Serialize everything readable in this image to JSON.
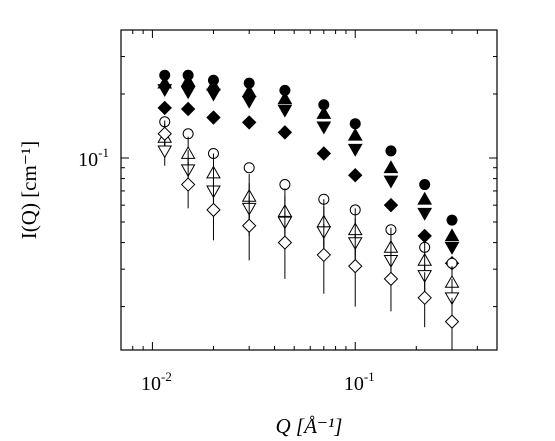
{
  "chart_data": {
    "type": "scatter",
    "title": "",
    "xlabel": "Q [Å⁻¹]",
    "ylabel": "I(Q) [cm⁻¹]",
    "xscale": "log",
    "yscale": "log",
    "xlim": [
      0.007,
      0.5
    ],
    "ylim": [
      0.0125,
      0.4
    ],
    "grid": false,
    "legend": "none",
    "x_ticks": [
      {
        "value": 0.01,
        "base": "10",
        "exp": "-2"
      },
      {
        "value": 0.1,
        "base": "10",
        "exp": "-1"
      }
    ],
    "y_ticks": [
      {
        "value": 0.1,
        "base": "10",
        "exp": "-1"
      }
    ],
    "series": [
      {
        "marker": "circle",
        "filled": true,
        "x": [
          0.0115,
          0.015,
          0.02,
          0.03,
          0.045,
          0.07,
          0.1,
          0.15,
          0.22,
          0.3
        ],
        "y": [
          0.245,
          0.245,
          0.232,
          0.225,
          0.208,
          0.178,
          0.145,
          0.108,
          0.075,
          0.051
        ]
      },
      {
        "marker": "triangle-up",
        "filled": true,
        "x": [
          0.0115,
          0.015,
          0.02,
          0.03,
          0.045,
          0.07,
          0.1,
          0.15,
          0.22,
          0.3
        ],
        "y": [
          0.225,
          0.23,
          0.22,
          0.205,
          0.19,
          0.162,
          0.128,
          0.09,
          0.064,
          0.043
        ]
      },
      {
        "marker": "triangle-down",
        "filled": true,
        "x": [
          0.0115,
          0.015,
          0.02,
          0.03,
          0.045,
          0.07,
          0.1,
          0.15,
          0.22,
          0.3
        ],
        "y": [
          0.21,
          0.205,
          0.2,
          0.185,
          0.168,
          0.14,
          0.11,
          0.078,
          0.055,
          0.038
        ]
      },
      {
        "marker": "diamond",
        "filled": true,
        "x": [
          0.0115,
          0.015,
          0.02,
          0.03,
          0.045,
          0.07,
          0.1,
          0.15,
          0.22,
          0.3
        ],
        "y": [
          0.172,
          0.17,
          0.155,
          0.147,
          0.132,
          0.105,
          0.083,
          0.06,
          0.043,
          0.032
        ]
      },
      {
        "marker": "circle",
        "filled": false,
        "x": [
          0.0115,
          0.015,
          0.02,
          0.03,
          0.045,
          0.07,
          0.1,
          0.15,
          0.22,
          0.3
        ],
        "y": [
          0.148,
          0.13,
          0.105,
          0.09,
          0.075,
          0.064,
          0.057,
          0.046,
          0.038,
          0.032
        ]
      },
      {
        "marker": "triangle-up",
        "filled": false,
        "errorbars": true,
        "x": [
          0.0115,
          0.015,
          0.02,
          0.03,
          0.045,
          0.07,
          0.1,
          0.15,
          0.22,
          0.3
        ],
        "y": [
          0.125,
          0.105,
          0.085,
          0.066,
          0.056,
          0.05,
          0.046,
          0.038,
          0.033,
          0.026
        ],
        "err_low": [
          0.016,
          0.017,
          0.016,
          0.014,
          0.013,
          0.012,
          0.011,
          0.008,
          0.006,
          0.004
        ],
        "err_high": [
          0.02,
          0.021,
          0.02,
          0.018,
          0.016,
          0.014,
          0.012,
          0.009,
          0.007,
          0.005
        ]
      },
      {
        "marker": "triangle-down",
        "filled": false,
        "errorbars": true,
        "x": [
          0.0115,
          0.015,
          0.02,
          0.03,
          0.045,
          0.07,
          0.1,
          0.15,
          0.22,
          0.3
        ],
        "y": [
          0.108,
          0.088,
          0.07,
          0.058,
          0.05,
          0.045,
          0.04,
          0.033,
          0.028,
          0.022
        ],
        "err_low": [
          0.016,
          0.017,
          0.016,
          0.015,
          0.013,
          0.012,
          0.011,
          0.008,
          0.006,
          0.004
        ],
        "err_high": [
          0.02,
          0.021,
          0.02,
          0.018,
          0.016,
          0.014,
          0.012,
          0.009,
          0.007,
          0.005
        ]
      },
      {
        "marker": "diamond",
        "filled": false,
        "errorbars": true,
        "x": [
          0.0115,
          0.015,
          0.02,
          0.03,
          0.045,
          0.07,
          0.1,
          0.15,
          0.22,
          0.3
        ],
        "y": [
          0.13,
          0.075,
          0.057,
          0.048,
          0.04,
          0.035,
          0.031,
          0.027,
          0.022,
          0.017
        ],
        "err_low": [
          0.016,
          0.017,
          0.016,
          0.015,
          0.013,
          0.012,
          0.011,
          0.008,
          0.006,
          0.004
        ],
        "err_high": [
          0.02,
          0.021,
          0.02,
          0.018,
          0.016,
          0.014,
          0.012,
          0.009,
          0.007,
          0.005
        ]
      }
    ]
  }
}
